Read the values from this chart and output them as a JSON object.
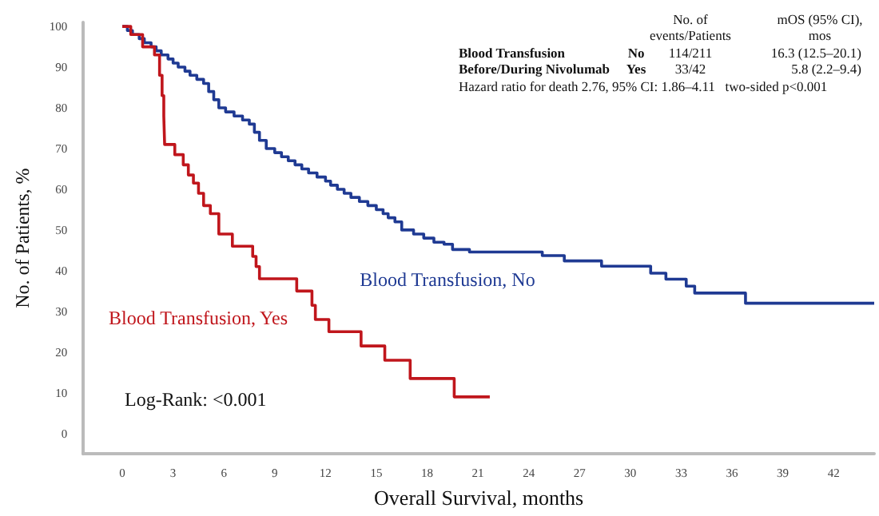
{
  "chart_data": {
    "type": "step",
    "xlabel": "Overall Survival, months",
    "ylabel": "No. of Patients, %",
    "xlim": [
      -2.3,
      44.4
    ],
    "ylim": [
      -5,
      101
    ],
    "xticks": [
      0,
      3,
      6,
      9,
      12,
      15,
      18,
      21,
      24,
      27,
      30,
      33,
      36,
      39,
      42
    ],
    "yticks": [
      0,
      10,
      20,
      30,
      40,
      50,
      60,
      70,
      80,
      90,
      100
    ],
    "series": [
      {
        "name": "Blood Transfusion, No",
        "color": "#1f3a93",
        "x": [
          0,
          0.3,
          0.6,
          1.0,
          1.3,
          1.7,
          2.0,
          2.3,
          2.7,
          3.0,
          3.3,
          3.7,
          4.0,
          4.4,
          4.8,
          5.1,
          5.4,
          5.7,
          6.1,
          6.6,
          7.1,
          7.5,
          7.8,
          8.1,
          8.5,
          9.0,
          9.4,
          9.8,
          10.2,
          10.6,
          11.0,
          11.5,
          12.0,
          12.3,
          12.7,
          13.1,
          13.5,
          14.0,
          14.5,
          15.0,
          15.4,
          15.7,
          16.1,
          16.5,
          17.2,
          17.8,
          18.4,
          19.0,
          19.5,
          20.5,
          24.8,
          26.1,
          28.3,
          31.2,
          32.1,
          33.3,
          33.8,
          36.8,
          44.4
        ],
        "values": [
          100,
          99,
          98,
          97,
          96,
          95,
          94,
          93,
          92,
          91,
          90,
          89,
          88,
          87,
          86,
          84,
          82,
          80,
          79,
          78,
          77,
          76,
          74,
          72,
          70,
          69,
          68,
          67,
          66,
          65,
          64,
          63,
          62,
          61,
          60,
          59,
          58,
          57,
          56,
          55,
          54,
          53,
          52,
          50,
          49,
          48,
          47,
          46.5,
          45.2,
          44.6,
          43.7,
          42.4,
          41.1,
          39.4,
          37.9,
          36.2,
          34.5,
          32,
          32
        ]
      },
      {
        "name": "Blood Transfusion, Yes",
        "color": "#c0161c",
        "x": [
          0,
          0.5,
          1.2,
          1.9,
          2.2,
          2.35,
          2.45,
          2.5,
          3.1,
          3.6,
          3.9,
          4.2,
          4.5,
          4.8,
          5.2,
          5.7,
          6.5,
          7.7,
          7.9,
          8.1,
          10.3,
          11.2,
          11.4,
          12.2,
          14.1,
          15.5,
          17.0,
          19.6,
          21.7
        ],
        "values": [
          100,
          98,
          95,
          93,
          88,
          83,
          78,
          71,
          68.5,
          66,
          63.5,
          61.5,
          59,
          56,
          54,
          49,
          46,
          43.5,
          41,
          38,
          35,
          31.5,
          28,
          25,
          21.5,
          18,
          13.5,
          9,
          9
        ]
      }
    ],
    "annotations": [
      "No. of",
      "events/Patients",
      "mOS (95% CI),",
      "mos",
      "Blood Transfusion",
      "Before/During Nivolumab",
      "No",
      "Yes",
      "114/211",
      "33/42",
      "16.3 (12.5–20.1)",
      "5.8 (2.2–9.4)",
      "Hazard ratio for death 2.76, 95% CI: 1.86–4.11   two-sided p<0.001",
      "Log-Rank: <0.001"
    ],
    "grid": false,
    "legend": false,
    "marker": "none",
    "line_style": "solid"
  }
}
